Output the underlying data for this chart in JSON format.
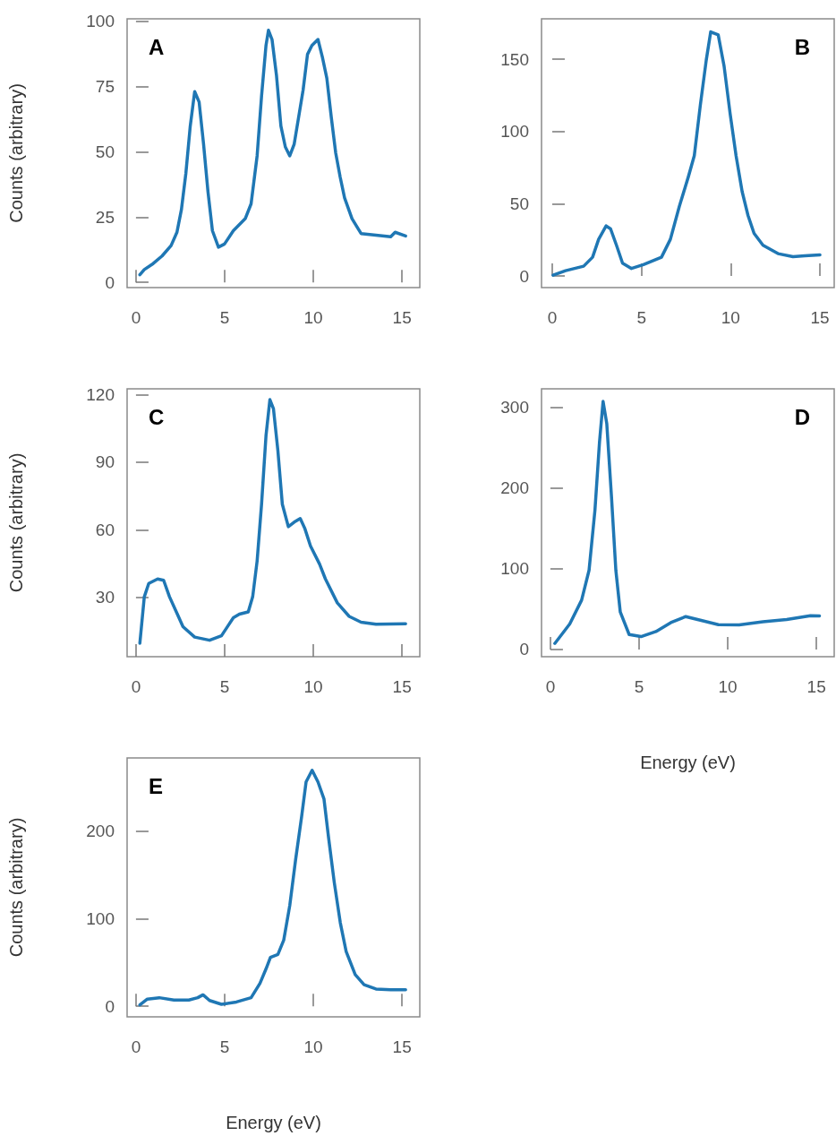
{
  "chart_data": [
    {
      "type": "line",
      "title": "A",
      "ylabel": "Counts (arbitrary)",
      "color": "#1f77b4",
      "xlim": [
        -0.5,
        16
      ],
      "ylim": [
        -2,
        101
      ],
      "xticks": [
        0,
        5,
        10,
        15
      ],
      "yticks": [
        0,
        25,
        50,
        75,
        100
      ],
      "x": [
        0.22,
        0.47,
        0.97,
        1.47,
        1.98,
        2.31,
        2.56,
        2.81,
        3.06,
        3.31,
        3.56,
        3.81,
        4.06,
        4.31,
        4.65,
        4.99,
        5.49,
        6.16,
        6.49,
        6.83,
        7.08,
        7.33,
        7.47,
        7.67,
        7.92,
        8.17,
        8.42,
        8.67,
        8.92,
        9.17,
        9.42,
        9.67,
        9.92,
        10.26,
        10.51,
        10.76,
        11.01,
        11.26,
        11.51,
        11.76,
        12.18,
        12.69,
        13.53,
        14.36,
        14.61,
        15.2
      ],
      "values": [
        2.9,
        4.9,
        7.2,
        10.1,
        14.1,
        19.2,
        27.8,
        41.6,
        59.9,
        73.1,
        69.1,
        53,
        34.7,
        19.8,
        13.5,
        14.7,
        19.8,
        24.4,
        30.1,
        48.5,
        71.4,
        90.8,
        96.6,
        93.1,
        79.4,
        59.9,
        51.9,
        48.5,
        53,
        63.3,
        73.6,
        87.4,
        90.8,
        93.1,
        86.3,
        78.2,
        63.3,
        49.6,
        40.4,
        32.4,
        24.4,
        18.7,
        18.1,
        17.5,
        19.2,
        17.8
      ]
    },
    {
      "type": "line",
      "title": "B",
      "color": "#1f77b4",
      "xlim": [
        -0.6,
        15.8
      ],
      "ylim": [
        -8,
        178
      ],
      "xticks": [
        0,
        5,
        10,
        15
      ],
      "yticks": [
        0,
        50,
        100,
        150
      ],
      "x": [
        0.05,
        0.75,
        1.76,
        2.26,
        2.6,
        3.02,
        3.27,
        3.6,
        3.94,
        4.44,
        5.11,
        6.12,
        6.62,
        7.12,
        7.63,
        7.96,
        8.3,
        8.63,
        8.88,
        9.3,
        9.63,
        9.97,
        10.3,
        10.64,
        10.97,
        11.31,
        11.81,
        12.65,
        13.49,
        14.16,
        15
      ],
      "values": [
        0.6,
        3.7,
        6.8,
        13,
        25.4,
        34.7,
        32.6,
        21.3,
        8.9,
        5.2,
        7.9,
        13,
        25.4,
        48.1,
        68.8,
        83.3,
        118.4,
        149.4,
        169,
        166.9,
        145.2,
        112.2,
        83.3,
        58.5,
        41.9,
        29.5,
        21.3,
        15.5,
        13.4,
        14,
        14.7
      ]
    },
    {
      "type": "line",
      "title": "C",
      "ylabel": "Counts (arbitrary)",
      "color": "#1f77b4",
      "xlim": [
        -0.5,
        16
      ],
      "ylim": [
        3.7,
        122.6
      ],
      "xticks": [
        0,
        5,
        10,
        15
      ],
      "yticks": [
        30,
        60,
        90,
        120
      ],
      "x": [
        0.22,
        0.47,
        0.72,
        1.22,
        1.56,
        1.89,
        2.31,
        2.65,
        3.31,
        4.15,
        4.82,
        5.49,
        5.83,
        6.33,
        6.58,
        6.83,
        7.08,
        7.33,
        7.55,
        7.75,
        8,
        8.25,
        8.59,
        8.92,
        9.26,
        9.51,
        9.84,
        10.35,
        10.68,
        11.35,
        12.02,
        12.69,
        13.53,
        15.2
      ],
      "values": [
        9.7,
        30.3,
        36.2,
        38.2,
        37.6,
        30.3,
        23,
        17,
        12.4,
        11,
        13,
        21,
        22.6,
        23.6,
        30.3,
        46.2,
        71.4,
        101.8,
        117.8,
        113.8,
        95.2,
        71.4,
        61.4,
        63.4,
        65,
        60.8,
        52.8,
        44.8,
        38.2,
        27.6,
        21.6,
        19,
        18.1,
        18.3
      ]
    },
    {
      "type": "line",
      "title": "D",
      "xlabel": "Energy (eV)",
      "color": "#1f77b4",
      "xlim": [
        -0.5,
        16
      ],
      "ylim": [
        -9,
        323
      ],
      "xticks": [
        0,
        5,
        10,
        15
      ],
      "yticks": [
        0,
        100,
        200,
        300
      ],
      "x": [
        0.25,
        1.09,
        1.76,
        2.18,
        2.51,
        2.77,
        2.97,
        3.18,
        3.44,
        3.69,
        3.94,
        4.44,
        5.11,
        5.95,
        6.79,
        7.63,
        8.3,
        9.47,
        10.64,
        11.98,
        13.32,
        14.66,
        15.17
      ],
      "values": [
        7.4,
        31.5,
        61.1,
        98.1,
        172.2,
        257.4,
        307.4,
        279.6,
        190.7,
        98.1,
        46.3,
        18.5,
        15.9,
        22.2,
        33.3,
        40.7,
        37,
        30.7,
        30.4,
        34.4,
        37,
        41.9,
        41.5
      ]
    },
    {
      "type": "line",
      "title": "E",
      "ylabel": "Counts (arbitrary)",
      "xlabel": "Energy (eV)",
      "color": "#1f77b4",
      "xlim": [
        -0.5,
        16
      ],
      "ylim": [
        -12,
        283
      ],
      "xticks": [
        0,
        5,
        10,
        15
      ],
      "yticks": [
        0,
        100,
        200
      ],
      "x": [
        0.22,
        0.64,
        1.31,
        2.14,
        2.98,
        3.48,
        3.78,
        4.15,
        4.82,
        5.66,
        6.49,
        6.99,
        7.33,
        7.58,
        8,
        8.33,
        8.67,
        9,
        9.34,
        9.59,
        9.93,
        10.26,
        10.6,
        10.85,
        11.18,
        11.52,
        11.85,
        12.36,
        12.86,
        13.53,
        14.36,
        15.2
      ],
      "values": [
        1.6,
        8.2,
        9.8,
        7.2,
        7.2,
        9.8,
        13.1,
        6.6,
        2.3,
        4.9,
        9.8,
        26.2,
        42.6,
        55.7,
        59,
        75.4,
        114.8,
        167.2,
        216.4,
        255.7,
        268.9,
        255.7,
        236.1,
        193.4,
        141,
        95.1,
        62.3,
        36.1,
        24.6,
        19.7,
        19,
        19
      ]
    }
  ]
}
